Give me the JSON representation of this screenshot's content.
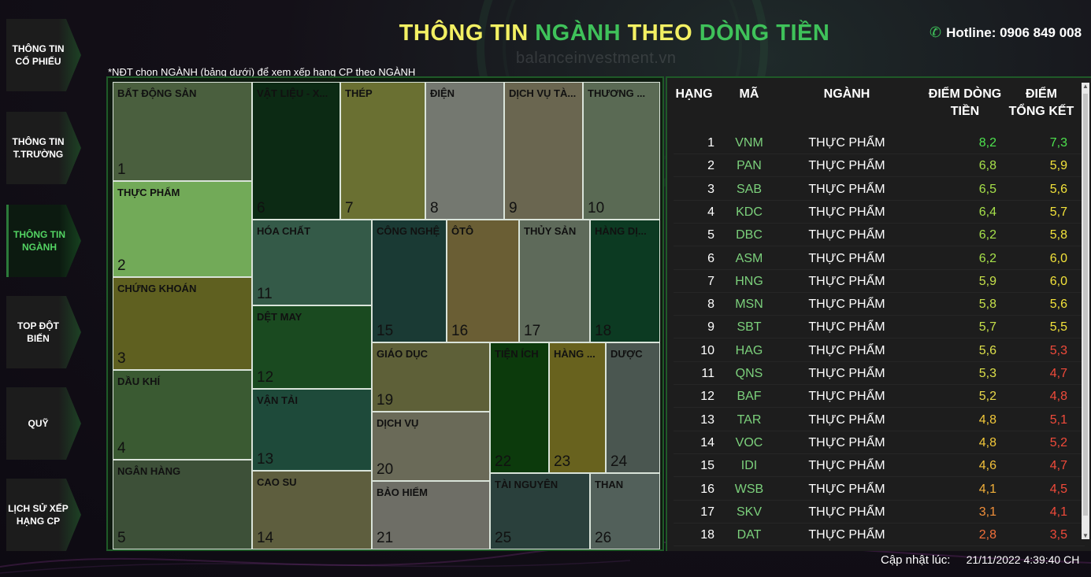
{
  "header": {
    "title_parts": [
      {
        "text": "THÔNG TIN ",
        "color": "yellow"
      },
      {
        "text": "NGÀNH ",
        "color": "green"
      },
      {
        "text": "THEO ",
        "color": "yellow"
      },
      {
        "text": "DÒNG TIỀN",
        "color": "green"
      }
    ],
    "hotline": "Hotline: 0906 849 008",
    "watermark": "balanceinvestment.vn"
  },
  "sidebar": {
    "items": [
      {
        "label": "THÔNG TIN CỔ PHIẾU",
        "active": false
      },
      {
        "label": "THÔNG TIN T.TRƯỜNG",
        "active": false
      },
      {
        "label": "THÔNG TIN NGÀNH",
        "active": true
      },
      {
        "label": "TOP ĐỘT BIẾN",
        "active": false
      },
      {
        "label": "QUỸ",
        "active": false
      },
      {
        "label": "LỊCH SỬ XẾP HẠNG CP",
        "active": false
      }
    ]
  },
  "hint": "*NĐT chọn NGÀNH (bảng dưới) để xem xếp hạng CP theo NGÀNH",
  "treemap": {
    "tiles": [
      {
        "name": "BẤT ĐỘNG SẢN",
        "rank": "1",
        "color": "#4a5f3e"
      },
      {
        "name": "THỰC PHẨM",
        "rank": "2",
        "color": "#72aa58"
      },
      {
        "name": "CHỨNG KHOÁN",
        "rank": "3",
        "color": "#5f6020"
      },
      {
        "name": "DẦU KHÍ",
        "rank": "4",
        "color": "#3a5a32"
      },
      {
        "name": "NGÂN HÀNG",
        "rank": "5",
        "color": "#3d5038"
      },
      {
        "name": "VẬT LIỆU - X...",
        "rank": "6",
        "color": "#0c2a14"
      },
      {
        "name": "THÉP",
        "rank": "7",
        "color": "#6a7032"
      },
      {
        "name": "ĐIỆN",
        "rank": "8",
        "color": "#747870"
      },
      {
        "name": "DỊCH VỤ TÀ...",
        "rank": "9",
        "color": "#6a6650"
      },
      {
        "name": "THƯƠNG ...",
        "rank": "10",
        "color": "#5a6a54"
      },
      {
        "name": "HÓA CHẤT",
        "rank": "11",
        "color": "#345a48"
      },
      {
        "name": "DỆT MAY",
        "rank": "12",
        "color": "#1a4a20"
      },
      {
        "name": "VẬN TẢI",
        "rank": "13",
        "color": "#1e4a3a"
      },
      {
        "name": "CAO SU",
        "rank": "14",
        "color": "#5e5e3e"
      },
      {
        "name": "CÔNG NGHỆ",
        "rank": "15",
        "color": "#1a3a34"
      },
      {
        "name": "ÔTÔ",
        "rank": "16",
        "color": "#6a5e34"
      },
      {
        "name": "THỦY SẢN",
        "rank": "17",
        "color": "#5e6a5a"
      },
      {
        "name": "HÀNG DỊ...",
        "rank": "18",
        "color": "#0c3a22"
      },
      {
        "name": "GIÁO DỤC",
        "rank": "19",
        "color": "#5e6038"
      },
      {
        "name": "DỊCH VỤ",
        "rank": "20",
        "color": "#6a6a58"
      },
      {
        "name": "BẢO HIỂM",
        "rank": "21",
        "color": "#6e6e66"
      },
      {
        "name": "TIỆN ÍCH",
        "rank": "22",
        "color": "#0c3a0c"
      },
      {
        "name": "HÀNG ...",
        "rank": "23",
        "color": "#68621e"
      },
      {
        "name": "DƯỢC",
        "rank": "24",
        "color": "#4a5650"
      },
      {
        "name": "TÀI NGUYÊN",
        "rank": "25",
        "color": "#2a403c"
      },
      {
        "name": "THAN",
        "rank": "26",
        "color": "#52605a"
      }
    ]
  },
  "table": {
    "headers": {
      "rank": "HẠNG",
      "code": "MÃ",
      "sector": "NGÀNH",
      "flow_score": "ĐIỂM DÒNG TIỀN",
      "total_score": "ĐIỂM TỔNG KẾT"
    },
    "rows": [
      {
        "rank": "1",
        "code": "VNM",
        "sector": "THỰC PHẨM",
        "flow": "8,2",
        "flow_color": "#4ee24e",
        "total": "7,3",
        "total_color": "#4ee24e"
      },
      {
        "rank": "2",
        "code": "PAN",
        "sector": "THỰC PHẨM",
        "flow": "6,8",
        "flow_color": "#a6e04a",
        "total": "5,9",
        "total_color": "#f2e23a"
      },
      {
        "rank": "3",
        "code": "SAB",
        "sector": "THỰC PHẨM",
        "flow": "6,5",
        "flow_color": "#a6e04a",
        "total": "5,6",
        "total_color": "#f2e23a"
      },
      {
        "rank": "4",
        "code": "KDC",
        "sector": "THỰC PHẨM",
        "flow": "6,4",
        "flow_color": "#a6e04a",
        "total": "5,7",
        "total_color": "#f2e23a"
      },
      {
        "rank": "5",
        "code": "DBC",
        "sector": "THỰC PHẨM",
        "flow": "6,2",
        "flow_color": "#a6e04a",
        "total": "5,8",
        "total_color": "#f2e23a"
      },
      {
        "rank": "6",
        "code": "ASM",
        "sector": "THỰC PHẨM",
        "flow": "6,2",
        "flow_color": "#a6e04a",
        "total": "6,0",
        "total_color": "#f2e23a"
      },
      {
        "rank": "7",
        "code": "HNG",
        "sector": "THỰC PHẨM",
        "flow": "5,9",
        "flow_color": "#c6e04a",
        "total": "6,0",
        "total_color": "#f2e23a"
      },
      {
        "rank": "8",
        "code": "MSN",
        "sector": "THỰC PHẨM",
        "flow": "5,8",
        "flow_color": "#c6e04a",
        "total": "5,6",
        "total_color": "#f2e23a"
      },
      {
        "rank": "9",
        "code": "SBT",
        "sector": "THỰC PHẨM",
        "flow": "5,7",
        "flow_color": "#c6e04a",
        "total": "5,5",
        "total_color": "#f2e23a"
      },
      {
        "rank": "10",
        "code": "HAG",
        "sector": "THỰC PHẨM",
        "flow": "5,6",
        "flow_color": "#dde04a",
        "total": "5,3",
        "total_color": "#f04a3a"
      },
      {
        "rank": "11",
        "code": "QNS",
        "sector": "THỰC PHẨM",
        "flow": "5,3",
        "flow_color": "#dde04a",
        "total": "4,7",
        "total_color": "#f04a3a"
      },
      {
        "rank": "12",
        "code": "BAF",
        "sector": "THỰC PHẨM",
        "flow": "5,2",
        "flow_color": "#e8d84a",
        "total": "4,8",
        "total_color": "#f04a3a"
      },
      {
        "rank": "13",
        "code": "TAR",
        "sector": "THỰC PHẨM",
        "flow": "4,8",
        "flow_color": "#f2c83a",
        "total": "5,1",
        "total_color": "#f04a3a"
      },
      {
        "rank": "14",
        "code": "VOC",
        "sector": "THỰC PHẨM",
        "flow": "4,8",
        "flow_color": "#f2c83a",
        "total": "5,2",
        "total_color": "#f04a3a"
      },
      {
        "rank": "15",
        "code": "IDI",
        "sector": "THỰC PHẨM",
        "flow": "4,6",
        "flow_color": "#f2c03a",
        "total": "4,7",
        "total_color": "#f04a3a"
      },
      {
        "rank": "16",
        "code": "WSB",
        "sector": "THỰC PHẨM",
        "flow": "4,1",
        "flow_color": "#f2b03a",
        "total": "4,5",
        "total_color": "#f04a3a"
      },
      {
        "rank": "17",
        "code": "SKV",
        "sector": "THỰC PHẨM",
        "flow": "3,1",
        "flow_color": "#f2903a",
        "total": "4,1",
        "total_color": "#f04a3a"
      },
      {
        "rank": "18",
        "code": "DAT",
        "sector": "THỰC PHẨM",
        "flow": "2,8",
        "flow_color": "#f2703a",
        "total": "3,5",
        "total_color": "#f04a3a"
      }
    ]
  },
  "footer": {
    "updated_label": "Cập nhật lúc:",
    "updated_time": "21/11/2022 4:39:40 CH"
  }
}
